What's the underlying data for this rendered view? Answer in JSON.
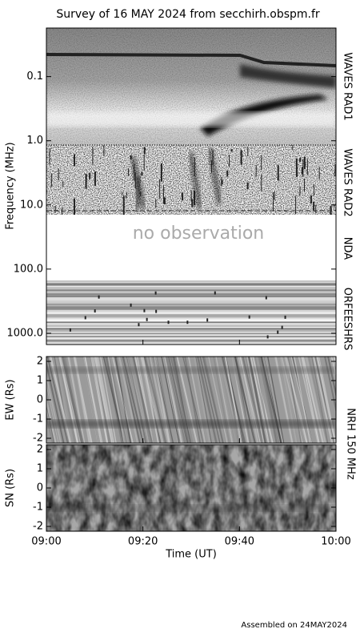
{
  "chart_data": [
    {
      "type": "spectrogram",
      "title": "Survey of 16 MAY 2024 from secchirh.obspm.fr",
      "y_label": "Frequency (MHz)",
      "log_scale": true,
      "ylim": [
        0.0175,
        1500
      ],
      "yticks": [
        0.1,
        {
          "value": 1,
          "label": "1.0"
        },
        {
          "value": 10,
          "label": "10.0"
        },
        {
          "value": 100,
          "label": "100.0"
        },
        {
          "value": 1000,
          "label": "1000.0"
        }
      ],
      "bands": [
        "WAVES RAD1",
        "WAVES RAD2",
        "NDA",
        "ORFEESHRS"
      ],
      "annotation": "no observation"
    },
    {
      "type": "spectrogram",
      "y_label": "EW (Rs)",
      "ylim": [
        -2.25,
        2.25
      ],
      "yticks": [
        -2,
        -1,
        0,
        1,
        2
      ],
      "instrument": "NRH 150 MHz"
    },
    {
      "type": "spectrogram",
      "y_label": "SN (Rs)",
      "ylim": [
        -2.25,
        2.25
      ],
      "yticks": [
        -2,
        -1,
        0,
        1,
        2
      ],
      "x_label": "Time (UT)",
      "xlim": [
        "09:00",
        "10:00"
      ],
      "xticks": [
        "09:00",
        "09:20",
        "09:40",
        "10:00"
      ],
      "footer": "Assembled on 24MAY2024"
    }
  ]
}
